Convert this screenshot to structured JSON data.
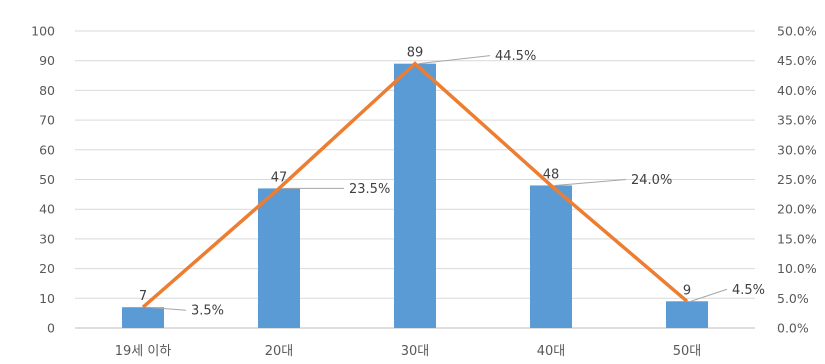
{
  "chart_data": {
    "type": "bar",
    "categories": [
      "19세 이하",
      "20대",
      "30대",
      "40대",
      "50대"
    ],
    "series": [
      {
        "type": "bar",
        "axis": "left",
        "color": "#5B9BD5",
        "values": [
          7,
          47,
          89,
          48,
          9
        ],
        "labels": [
          "7",
          "47",
          "89",
          "48",
          "9"
        ]
      },
      {
        "type": "line",
        "axis": "right",
        "color": "#ED7D31",
        "values": [
          3.5,
          23.5,
          44.5,
          24.0,
          4.5
        ],
        "labels": [
          "3.5%",
          "23.5%",
          "44.5%",
          "24.0%",
          "4.5%"
        ]
      }
    ],
    "ylim": [
      0,
      100
    ],
    "y_ticks": [
      "0",
      "10",
      "20",
      "30",
      "40",
      "50",
      "60",
      "70",
      "80",
      "90",
      "100"
    ],
    "y2lim": [
      0,
      50
    ],
    "y2_ticks": [
      "0.0%",
      "5.0%",
      "10.0%",
      "15.0%",
      "20.0%",
      "25.0%",
      "30.0%",
      "35.0%",
      "40.0%",
      "45.0%",
      "50.0%"
    ],
    "grid": true,
    "legend": "none"
  }
}
